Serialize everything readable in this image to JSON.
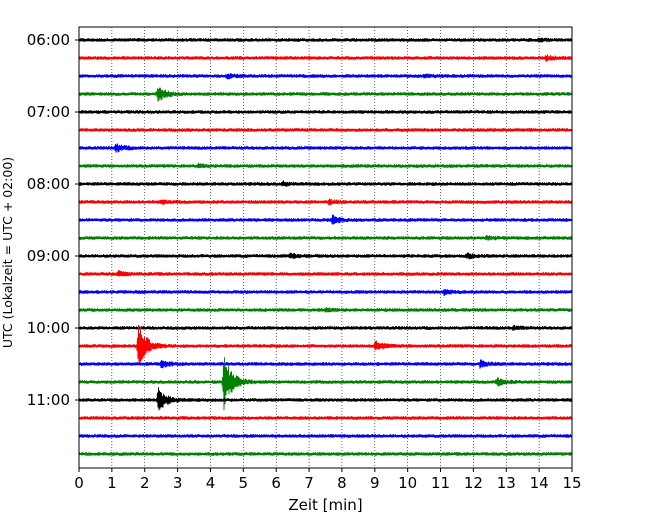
{
  "chart_data": {
    "type": "line",
    "title": "",
    "xlabel": "Zeit  [min]",
    "ylabel": "UTC (Lokalzeit = UTC + 02:00)",
    "xlim": [
      0,
      15
    ],
    "x_ticks": [
      "0",
      "1",
      "2",
      "3",
      "4",
      "5",
      "6",
      "7",
      "8",
      "9",
      "10",
      "11",
      "12",
      "13",
      "14",
      "15"
    ],
    "y_ticks": [
      "06:00",
      "07:00",
      "08:00",
      "09:00",
      "10:00",
      "11:00"
    ],
    "grid": "vertical dotted",
    "start_time": "06:00",
    "trace_interval_min": 15,
    "trace_colors": [
      "#000000",
      "#ff0000",
      "#0000ff",
      "#008000"
    ],
    "series": [
      {
        "start": "06:00",
        "events": [
          {
            "x": 14.0,
            "amp": 0.15
          }
        ]
      },
      {
        "start": "06:15",
        "events": [
          {
            "x": 14.2,
            "amp": 0.3
          }
        ]
      },
      {
        "start": "06:30",
        "events": [
          {
            "x": 10.5,
            "amp": 0.2
          },
          {
            "x": 4.5,
            "amp": 0.25
          }
        ]
      },
      {
        "start": "06:45",
        "events": [
          {
            "x": 2.4,
            "amp": 0.9
          }
        ]
      },
      {
        "start": "07:00",
        "events": []
      },
      {
        "start": "07:15",
        "events": []
      },
      {
        "start": "07:30",
        "events": [
          {
            "x": 1.1,
            "amp": 0.55
          }
        ]
      },
      {
        "start": "07:45",
        "events": [
          {
            "x": 3.6,
            "amp": 0.2
          }
        ]
      },
      {
        "start": "08:00",
        "events": [
          {
            "x": 6.2,
            "amp": 0.25
          }
        ]
      },
      {
        "start": "08:15",
        "events": [
          {
            "x": 2.5,
            "amp": 0.2
          },
          {
            "x": 7.6,
            "amp": 0.25
          }
        ]
      },
      {
        "start": "08:30",
        "events": [
          {
            "x": 7.7,
            "amp": 0.5
          }
        ]
      },
      {
        "start": "08:45",
        "events": [
          {
            "x": 12.4,
            "amp": 0.2
          }
        ]
      },
      {
        "start": "09:00",
        "events": [
          {
            "x": 6.4,
            "amp": 0.3
          },
          {
            "x": 11.8,
            "amp": 0.3
          }
        ]
      },
      {
        "start": "09:15",
        "events": [
          {
            "x": 1.2,
            "amp": 0.3
          }
        ]
      },
      {
        "start": "09:30",
        "events": [
          {
            "x": 11.1,
            "amp": 0.3
          }
        ]
      },
      {
        "start": "09:45",
        "events": [
          {
            "x": 7.5,
            "amp": 0.2
          }
        ]
      },
      {
        "start": "10:00",
        "events": [
          {
            "x": 13.2,
            "amp": 0.2
          }
        ]
      },
      {
        "start": "10:15",
        "events": [
          {
            "x": 1.8,
            "amp": 3.0
          },
          {
            "x": 9.0,
            "amp": 0.6
          }
        ]
      },
      {
        "start": "10:30",
        "events": [
          {
            "x": 2.5,
            "amp": 0.4
          },
          {
            "x": 12.2,
            "amp": 0.4
          }
        ]
      },
      {
        "start": "10:45",
        "events": [
          {
            "x": 4.4,
            "amp": 3.6
          },
          {
            "x": 12.7,
            "amp": 0.5
          }
        ]
      },
      {
        "start": "11:00",
        "events": [
          {
            "x": 2.4,
            "amp": 1.6
          }
        ]
      },
      {
        "start": "11:15",
        "events": []
      },
      {
        "start": "11:30",
        "events": []
      },
      {
        "start": "11:45",
        "events": []
      }
    ]
  }
}
